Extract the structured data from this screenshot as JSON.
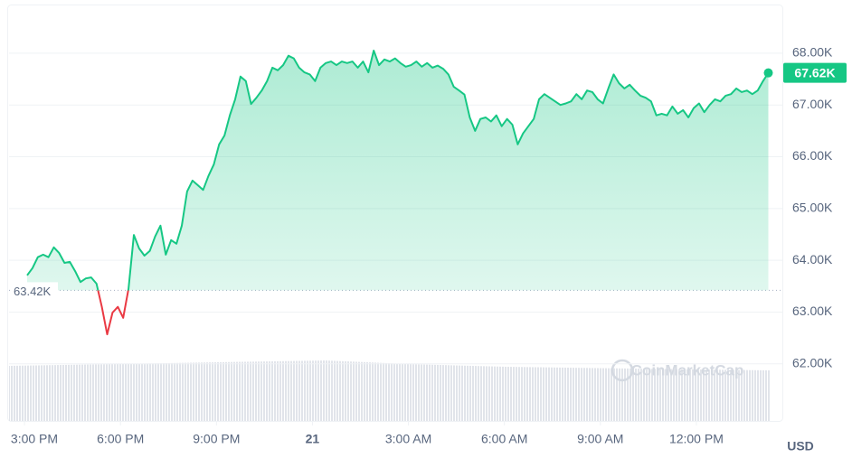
{
  "chart_data": {
    "type": "line",
    "series": [
      {
        "name": "Price",
        "color": "#16c784",
        "down_color": "#ea3943",
        "x": [
          5,
          15,
          25,
          35,
          45,
          55,
          65,
          75,
          85,
          95,
          105,
          115,
          125,
          135,
          145,
          155,
          165,
          175,
          185,
          195,
          205,
          215,
          225,
          235,
          245,
          255,
          265,
          275,
          285,
          295,
          305,
          315,
          325,
          335,
          345,
          355,
          365,
          375,
          385,
          395,
          405,
          415,
          425,
          435,
          445,
          455,
          465,
          475,
          485,
          495,
          505,
          515,
          525,
          535,
          545,
          555,
          565,
          575,
          585,
          595,
          605,
          615,
          625,
          635,
          645,
          655,
          665,
          675,
          685,
          695,
          705,
          715,
          725,
          735,
          745,
          755,
          765,
          775,
          785,
          795,
          805,
          815,
          825,
          835,
          845,
          855,
          865,
          875,
          885,
          895,
          905,
          915,
          925,
          935,
          945,
          955,
          965,
          975,
          985,
          995,
          1005,
          1015,
          1025,
          1035,
          1045,
          1055,
          1065,
          1075,
          1085,
          1095,
          1105,
          1115,
          1125,
          1135,
          1145,
          1155,
          1165,
          1175,
          1185,
          1195,
          1205,
          1215,
          1225,
          1235,
          1245,
          1255,
          1265,
          1275,
          1285,
          1295,
          1305,
          1315,
          1325,
          1335,
          1345,
          1355,
          1365,
          1375,
          1385,
          1395
        ],
        "values": [
          63710,
          63850,
          64060,
          64110,
          64060,
          64250,
          64140,
          63950,
          63970,
          63790,
          63580,
          63650,
          63670,
          63550,
          63100,
          62570,
          62990,
          63100,
          62890,
          63450,
          64490,
          64230,
          64090,
          64180,
          64460,
          64670,
          64110,
          64390,
          64320,
          64670,
          65330,
          65540,
          65450,
          65360,
          65630,
          65850,
          66240,
          66410,
          66800,
          67110,
          67550,
          67460,
          67020,
          67140,
          67280,
          67460,
          67720,
          67670,
          67770,
          67950,
          67900,
          67720,
          67630,
          67590,
          67460,
          67720,
          67810,
          67840,
          67770,
          67840,
          67810,
          67840,
          67720,
          67840,
          67630,
          68050,
          67770,
          67880,
          67840,
          67900,
          67810,
          67740,
          67770,
          67840,
          67740,
          67810,
          67720,
          67760,
          67700,
          67590,
          67350,
          67280,
          67200,
          66760,
          66500,
          66730,
          66760,
          66680,
          66800,
          66590,
          66730,
          66620,
          66240,
          66450,
          66590,
          66730,
          67110,
          67210,
          67140,
          67070,
          67000,
          67030,
          67070,
          67210,
          67110,
          67280,
          67250,
          67110,
          67030,
          67320,
          67590,
          67420,
          67320,
          67390,
          67280,
          67180,
          67140,
          67070,
          66800,
          66830,
          66800,
          66970,
          66830,
          66900,
          66760,
          66940,
          67030,
          66860,
          67000,
          67110,
          67070,
          67180,
          67210,
          67320,
          67250,
          67280,
          67210,
          67280,
          67460,
          67620
        ]
      }
    ],
    "xlim": [
      -29,
      1423
    ],
    "xticks": [
      {
        "value": 0,
        "label": "3:00 PM"
      },
      {
        "value": 180,
        "label": "6:00 PM"
      },
      {
        "value": 360,
        "label": "9:00 PM"
      },
      {
        "value": 540,
        "label": "21"
      },
      {
        "value": 720,
        "label": "3:00 AM"
      },
      {
        "value": 900,
        "label": "6:00 AM"
      },
      {
        "value": 1080,
        "label": "9:00 AM"
      },
      {
        "value": 1260,
        "label": "12:00 PM"
      }
    ],
    "ylim": [
      60880,
      68940
    ],
    "yticks": [
      {
        "value": 62000,
        "label": "62.00K"
      },
      {
        "value": 63000,
        "label": "63.00K"
      },
      {
        "value": 64000,
        "label": "64.00K"
      },
      {
        "value": 65000,
        "label": "65.00K"
      },
      {
        "value": 66000,
        "label": "66.00K"
      },
      {
        "value": 67000,
        "label": "67.00K"
      },
      {
        "value": 68000,
        "label": "68.00K"
      }
    ],
    "reference": {
      "value": 63420,
      "label": "63.42K"
    },
    "current": {
      "value": 67620,
      "label": "67.62K"
    },
    "currency": "USD",
    "watermark": "CoinMarketCap",
    "grid": true
  }
}
